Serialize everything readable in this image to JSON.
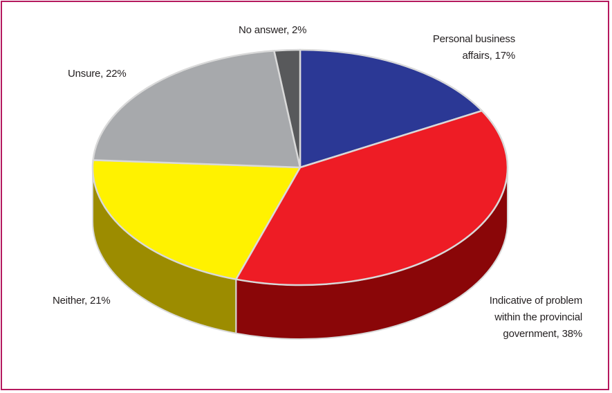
{
  "chart_data": {
    "type": "pie",
    "title": "",
    "slices": [
      {
        "label": "Personal business affairs",
        "value": 17,
        "text": [
          "Personal business",
          "affairs, 17%"
        ],
        "color": "#2b3895",
        "side_color": "#1a2260"
      },
      {
        "label": "Indicative of problem within the provincial government",
        "value": 38,
        "text": [
          "Indicative of problem",
          "within the provincial",
          "government, 38%"
        ],
        "color": "#ee1c25",
        "side_color": "#8a0608"
      },
      {
        "label": "Neither",
        "value": 21,
        "text": [
          "Neither, 21%"
        ],
        "color": "#fff200",
        "side_color": "#9c8c00"
      },
      {
        "label": "Unsure",
        "value": 22,
        "text": [
          "Unsure, 22%"
        ],
        "color": "#a7a9ac",
        "side_color": "#6d6e71"
      },
      {
        "label": "No answer",
        "value": 2,
        "text": [
          "No answer, 2%"
        ],
        "color": "#58595b",
        "side_color": "#333333"
      }
    ],
    "start_angle_deg": -90,
    "direction": "clockwise",
    "legend": "none",
    "three_d": true
  }
}
